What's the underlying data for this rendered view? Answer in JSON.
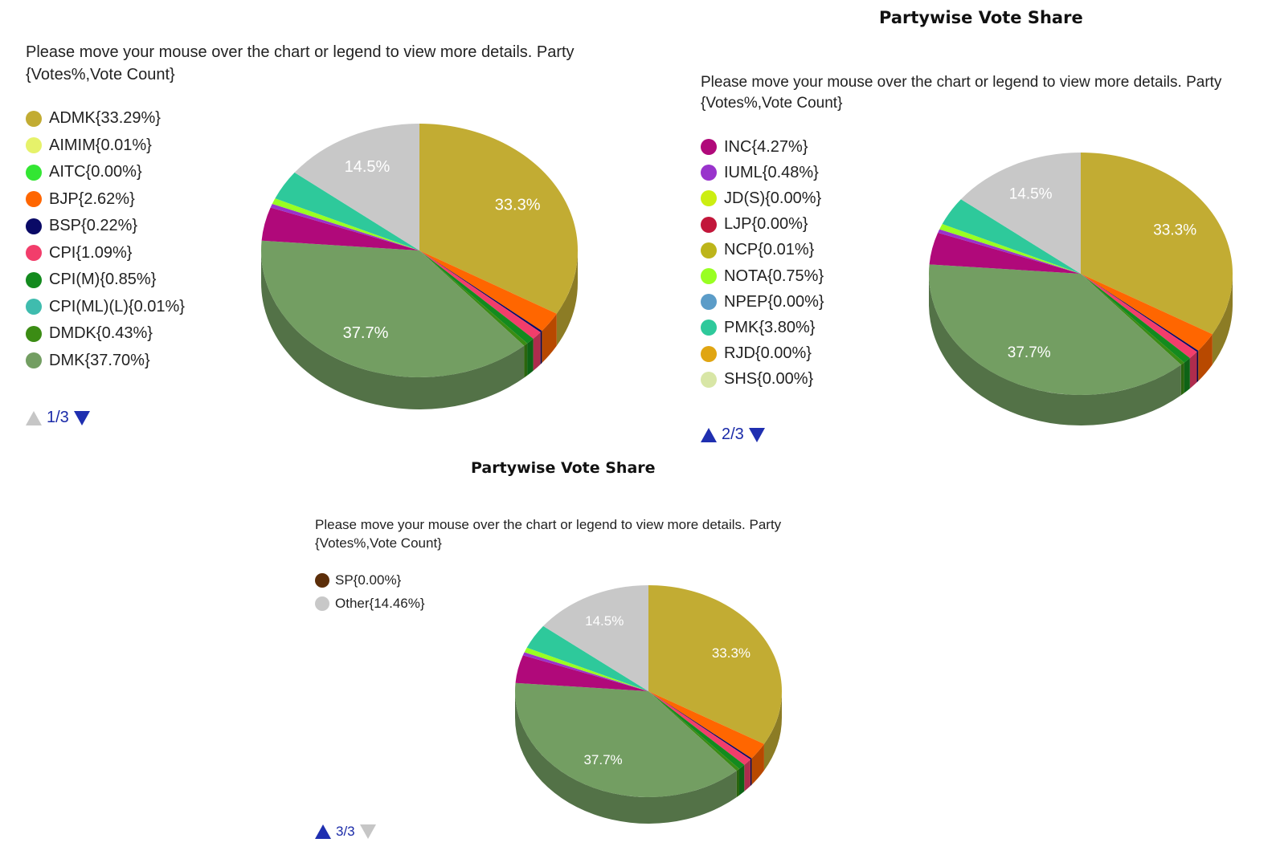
{
  "colors": {
    "other_slice": "#c8c8c8",
    "pager_active": "#1f2fb0",
    "pager_disabled": "#c6c6c6"
  },
  "chart_data": [
    {
      "type": "pie",
      "title": "",
      "instruction": "Please move your mouse over the chart or legend to view more details. Party {Votes%,Vote Count}",
      "pie_labels": [
        "33.3%",
        "14.5%",
        "37.7%"
      ],
      "legend": [
        {
          "label": "ADMK{33.29%}",
          "color": "#c2ac33"
        },
        {
          "label": "AIMIM{0.01%}",
          "color": "#e6f26a"
        },
        {
          "label": "AITC{0.00%}",
          "color": "#33e633"
        },
        {
          "label": "BJP{2.62%}",
          "color": "#ff6600"
        },
        {
          "label": "BSP{0.22%}",
          "color": "#0a0a66"
        },
        {
          "label": "CPI{1.09%}",
          "color": "#f23d6b"
        },
        {
          "label": "CPI(M){0.85%}",
          "color": "#138a1e"
        },
        {
          "label": "CPI(ML)(L){0.01%}",
          "color": "#3fbcae"
        },
        {
          "label": "DMDK{0.43%}",
          "color": "#3b8c14"
        },
        {
          "label": "DMK{37.70%}",
          "color": "#739e62"
        }
      ],
      "pager": {
        "text": "1/3",
        "up_enabled": false,
        "down_enabled": true
      }
    },
    {
      "type": "pie",
      "title": "Partywise Vote Share",
      "instruction": "Please move your mouse over the chart or legend to view more details. Party {Votes%,Vote Count}",
      "pie_labels": [
        "33.3%",
        "14.5%",
        "37.7%"
      ],
      "legend": [
        {
          "label": "INC{4.27%}",
          "color": "#b0097a"
        },
        {
          "label": "IUML{0.48%}",
          "color": "#9933cc"
        },
        {
          "label": "JD(S){0.00%}",
          "color": "#ccee11"
        },
        {
          "label": "LJP{0.00%}",
          "color": "#c2163a"
        },
        {
          "label": "NCP{0.01%}",
          "color": "#bdb51a"
        },
        {
          "label": "NOTA{0.75%}",
          "color": "#99ff22"
        },
        {
          "label": "NPEP{0.00%}",
          "color": "#5b9cc8"
        },
        {
          "label": "PMK{3.80%}",
          "color": "#2ec99b"
        },
        {
          "label": "RJD{0.00%}",
          "color": "#e0a512"
        },
        {
          "label": "SHS{0.00%}",
          "color": "#d8e6a6"
        }
      ],
      "pager": {
        "text": "2/3",
        "up_enabled": true,
        "down_enabled": true
      }
    },
    {
      "type": "pie",
      "title": "Partywise Vote Share",
      "instruction": "Please move your mouse over the chart or legend to view more details. Party {Votes%,Vote Count}",
      "pie_labels": [
        "33.3%",
        "14.5%",
        "37.7%"
      ],
      "legend": [
        {
          "label": "SP{0.00%}",
          "color": "#5c2e0a"
        },
        {
          "label": "Other{14.46%}",
          "color": "#c8c8c8"
        }
      ],
      "pager": {
        "text": "3/3",
        "up_enabled": true,
        "down_enabled": false
      }
    }
  ],
  "slices": [
    {
      "party": "ADMK",
      "value": 33.29,
      "color": "#c2ac33"
    },
    {
      "party": "BJP",
      "value": 2.62,
      "color": "#ff6600"
    },
    {
      "party": "BSP",
      "value": 0.22,
      "color": "#0a0a66"
    },
    {
      "party": "CPI",
      "value": 1.09,
      "color": "#f23d6b"
    },
    {
      "party": "CPI(M)",
      "value": 0.85,
      "color": "#138a1e"
    },
    {
      "party": "DMDK",
      "value": 0.43,
      "color": "#3b8c14"
    },
    {
      "party": "DMK",
      "value": 37.7,
      "color": "#739e62"
    },
    {
      "party": "INC",
      "value": 4.27,
      "color": "#b0097a"
    },
    {
      "party": "IUML",
      "value": 0.48,
      "color": "#9933cc"
    },
    {
      "party": "NOTA",
      "value": 0.75,
      "color": "#99ff22"
    },
    {
      "party": "PMK",
      "value": 3.8,
      "color": "#2ec99b"
    },
    {
      "party": "Other",
      "value": 14.46,
      "color": "#c8c8c8"
    }
  ]
}
